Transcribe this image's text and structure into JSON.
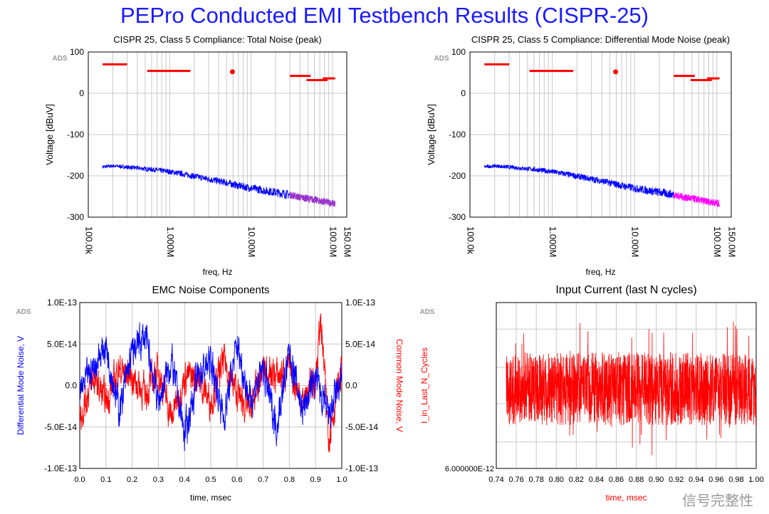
{
  "page": {
    "title": "PEPro Conducted EMI Testbench Results (CISPR-25)",
    "watermark": "信号完整性"
  },
  "chart_data": [
    {
      "id": "total",
      "type": "line",
      "title": "CISPR 25, Class 5 Compliance: Total Noise (peak)",
      "xlabel": "freq, Hz",
      "ylabel": "Voltage [dBuV]",
      "tag": "ADS",
      "xscale": "log",
      "xlim": [
        100000,
        150000000
      ],
      "ylim": [
        -300,
        100
      ],
      "yticks": [
        100,
        0,
        -100,
        -200,
        -300
      ],
      "ytick_labels": [
        "100",
        "0",
        "-100",
        "-200",
        "-300"
      ],
      "xticks": [
        100000,
        1000000,
        10000000,
        100000000,
        150000000
      ],
      "xtick_labels": [
        "100.0k",
        "1.000M",
        "10.00M",
        "100.0M",
        "150.0M"
      ],
      "limit_lines": [
        {
          "x": [
            150000,
            300000
          ],
          "y": 70
        },
        {
          "x": [
            530000,
            1800000
          ],
          "y": 54
        },
        {
          "x": [
            30000000,
            54000000
          ],
          "y": 42
        },
        {
          "x": [
            48000000,
            87000000
          ],
          "y": 32
        },
        {
          "x": [
            76000000,
            108000000
          ],
          "y": 36
        }
      ],
      "limit_points": [
        {
          "x": 5900000,
          "y": 52
        }
      ],
      "series": [
        {
          "color": "#0000ff",
          "x": [
            150000,
            200000,
            300000,
            500000,
            700000,
            1000000,
            1500000,
            2000000,
            3000000,
            5000000,
            7000000,
            10000000,
            15000000,
            20000000,
            30000000
          ],
          "y": [
            -178,
            -176,
            -179,
            -183,
            -186,
            -190,
            -196,
            -201,
            -208,
            -217,
            -224,
            -230,
            -236,
            -240,
            -246
          ]
        },
        {
          "color": "#9933cc",
          "x": [
            30000000,
            40000000,
            50000000,
            70000000,
            100000000,
            108000000
          ],
          "y": [
            -246,
            -252,
            -255,
            -261,
            -266,
            -268
          ]
        }
      ]
    },
    {
      "id": "dm",
      "type": "line",
      "title": "CISPR 25, Class 5 Compliance: Differential Mode Noise (peak)",
      "xlabel": "freq, Hz",
      "ylabel": "Voltage [dBuV]",
      "tag": "ADS",
      "xscale": "log",
      "xlim": [
        100000,
        150000000
      ],
      "ylim": [
        -300,
        100
      ],
      "yticks": [
        100,
        0,
        -100,
        -200,
        -300
      ],
      "ytick_labels": [
        "100",
        "0",
        "-100",
        "-200",
        "-300"
      ],
      "xticks": [
        100000,
        1000000,
        10000000,
        100000000,
        150000000
      ],
      "xtick_labels": [
        "100.0k",
        "1.000M",
        "10.00M",
        "100.0M",
        "150.0M"
      ],
      "limit_lines": [
        {
          "x": [
            150000,
            300000
          ],
          "y": 70
        },
        {
          "x": [
            530000,
            1800000
          ],
          "y": 54
        },
        {
          "x": [
            30000000,
            54000000
          ],
          "y": 42
        },
        {
          "x": [
            48000000,
            87000000
          ],
          "y": 32
        },
        {
          "x": [
            76000000,
            108000000
          ],
          "y": 36
        }
      ],
      "limit_points": [
        {
          "x": 5900000,
          "y": 52
        }
      ],
      "series": [
        {
          "color": "#0000ff",
          "x": [
            150000,
            200000,
            300000,
            500000,
            700000,
            1000000,
            1500000,
            2000000,
            3000000,
            5000000,
            7000000,
            10000000,
            15000000,
            20000000,
            30000000
          ],
          "y": [
            -178,
            -176,
            -179,
            -183,
            -186,
            -190,
            -196,
            -201,
            -208,
            -217,
            -224,
            -230,
            -236,
            -240,
            -246
          ]
        },
        {
          "color": "#ff00ff",
          "x": [
            30000000,
            40000000,
            50000000,
            70000000,
            100000000,
            108000000
          ],
          "y": [
            -246,
            -252,
            -255,
            -261,
            -266,
            -268
          ]
        }
      ]
    },
    {
      "id": "emc",
      "type": "line",
      "title": "EMC Noise Components",
      "xlabel": "time, msec",
      "ylabel": "Differential Mode Noise, V",
      "ylabel_right": "Common Mode Noise, V",
      "tag": "ADS",
      "xlim": [
        0,
        1
      ],
      "xticks": [
        0,
        0.1,
        0.2,
        0.3,
        0.4,
        0.5,
        0.6,
        0.7,
        0.8,
        0.9,
        1.0
      ],
      "xtick_labels": [
        "0.0",
        "0.1",
        "0.2",
        "0.3",
        "0.4",
        "0.5",
        "0.6",
        "0.7",
        "0.8",
        "0.9",
        "1.0"
      ],
      "ylim": [
        -1e-13,
        1e-13
      ],
      "yticks": [
        1e-13,
        5e-14,
        0,
        -5e-14,
        -1e-13
      ],
      "ytick_labels": [
        "1.0E-13",
        "5.0E-14",
        "0.0",
        "-5.0E-14",
        "-1.0E-13"
      ],
      "ytick_labels_right": [
        "1.0E-13",
        "5.0E-14",
        "0.0",
        "-5.0E-14",
        "-1.0E-13"
      ],
      "series": [
        {
          "color": "#0000ff",
          "x": [
            0,
            0.05,
            0.1,
            0.15,
            0.2,
            0.25,
            0.3,
            0.35,
            0.4,
            0.45,
            0.5,
            0.55,
            0.6,
            0.65,
            0.7,
            0.75,
            0.8,
            0.85,
            0.9,
            0.95,
            1.0
          ],
          "y": [
            -1e-14,
            2e-14,
            5e-14,
            -3e-14,
            4e-14,
            6e-14,
            -2e-14,
            3e-14,
            -6e-14,
            1e-14,
            3e-14,
            -4e-14,
            5e-14,
            -2e-14,
            2e-14,
            -5e-14,
            4e-14,
            -3e-14,
            1e-14,
            -4e-14,
            1e-14
          ]
        },
        {
          "color": "#ff0000",
          "x": [
            0,
            0.05,
            0.1,
            0.15,
            0.2,
            0.25,
            0.3,
            0.35,
            0.4,
            0.45,
            0.5,
            0.55,
            0.6,
            0.65,
            0.7,
            0.75,
            0.8,
            0.85,
            0.9,
            0.92,
            0.95,
            1.0
          ],
          "y": [
            -4e-14,
            1e-14,
            -2e-14,
            2e-14,
            1e-14,
            -1e-14,
            2e-14,
            -4e-14,
            1e-14,
            1e-14,
            -2e-14,
            3e-14,
            -1e-14,
            -3e-14,
            2e-14,
            1e-14,
            2e-14,
            -2e-14,
            1e-14,
            8e-14,
            -6e-14,
            2e-14
          ]
        }
      ]
    },
    {
      "id": "current",
      "type": "line",
      "title": "Input Current (last N cycles)",
      "xlabel": "time, msec",
      "ylabel_right": "I_in_Last_N_Cycles",
      "tag": "ADS",
      "xlim": [
        0.74,
        1.0
      ],
      "xticks": [
        0.74,
        0.76,
        0.78,
        0.8,
        0.82,
        0.84,
        0.86,
        0.88,
        0.9,
        0.92,
        0.94,
        0.96,
        0.98,
        1.0
      ],
      "xtick_labels": [
        "0.74",
        "0.76",
        "0.78",
        "0.80",
        "0.82",
        "0.84",
        "0.86",
        "0.88",
        "0.90",
        "0.92",
        "0.94",
        "0.96",
        "0.98",
        "1.00"
      ],
      "ytick_labels": [
        "6.000000E-12"
      ],
      "noise_band": {
        "x": [
          0.75,
          1.0
        ],
        "center": 0.52,
        "amplitude": 0.22
      },
      "series": [
        {
          "color": "#ff0000"
        }
      ]
    }
  ]
}
